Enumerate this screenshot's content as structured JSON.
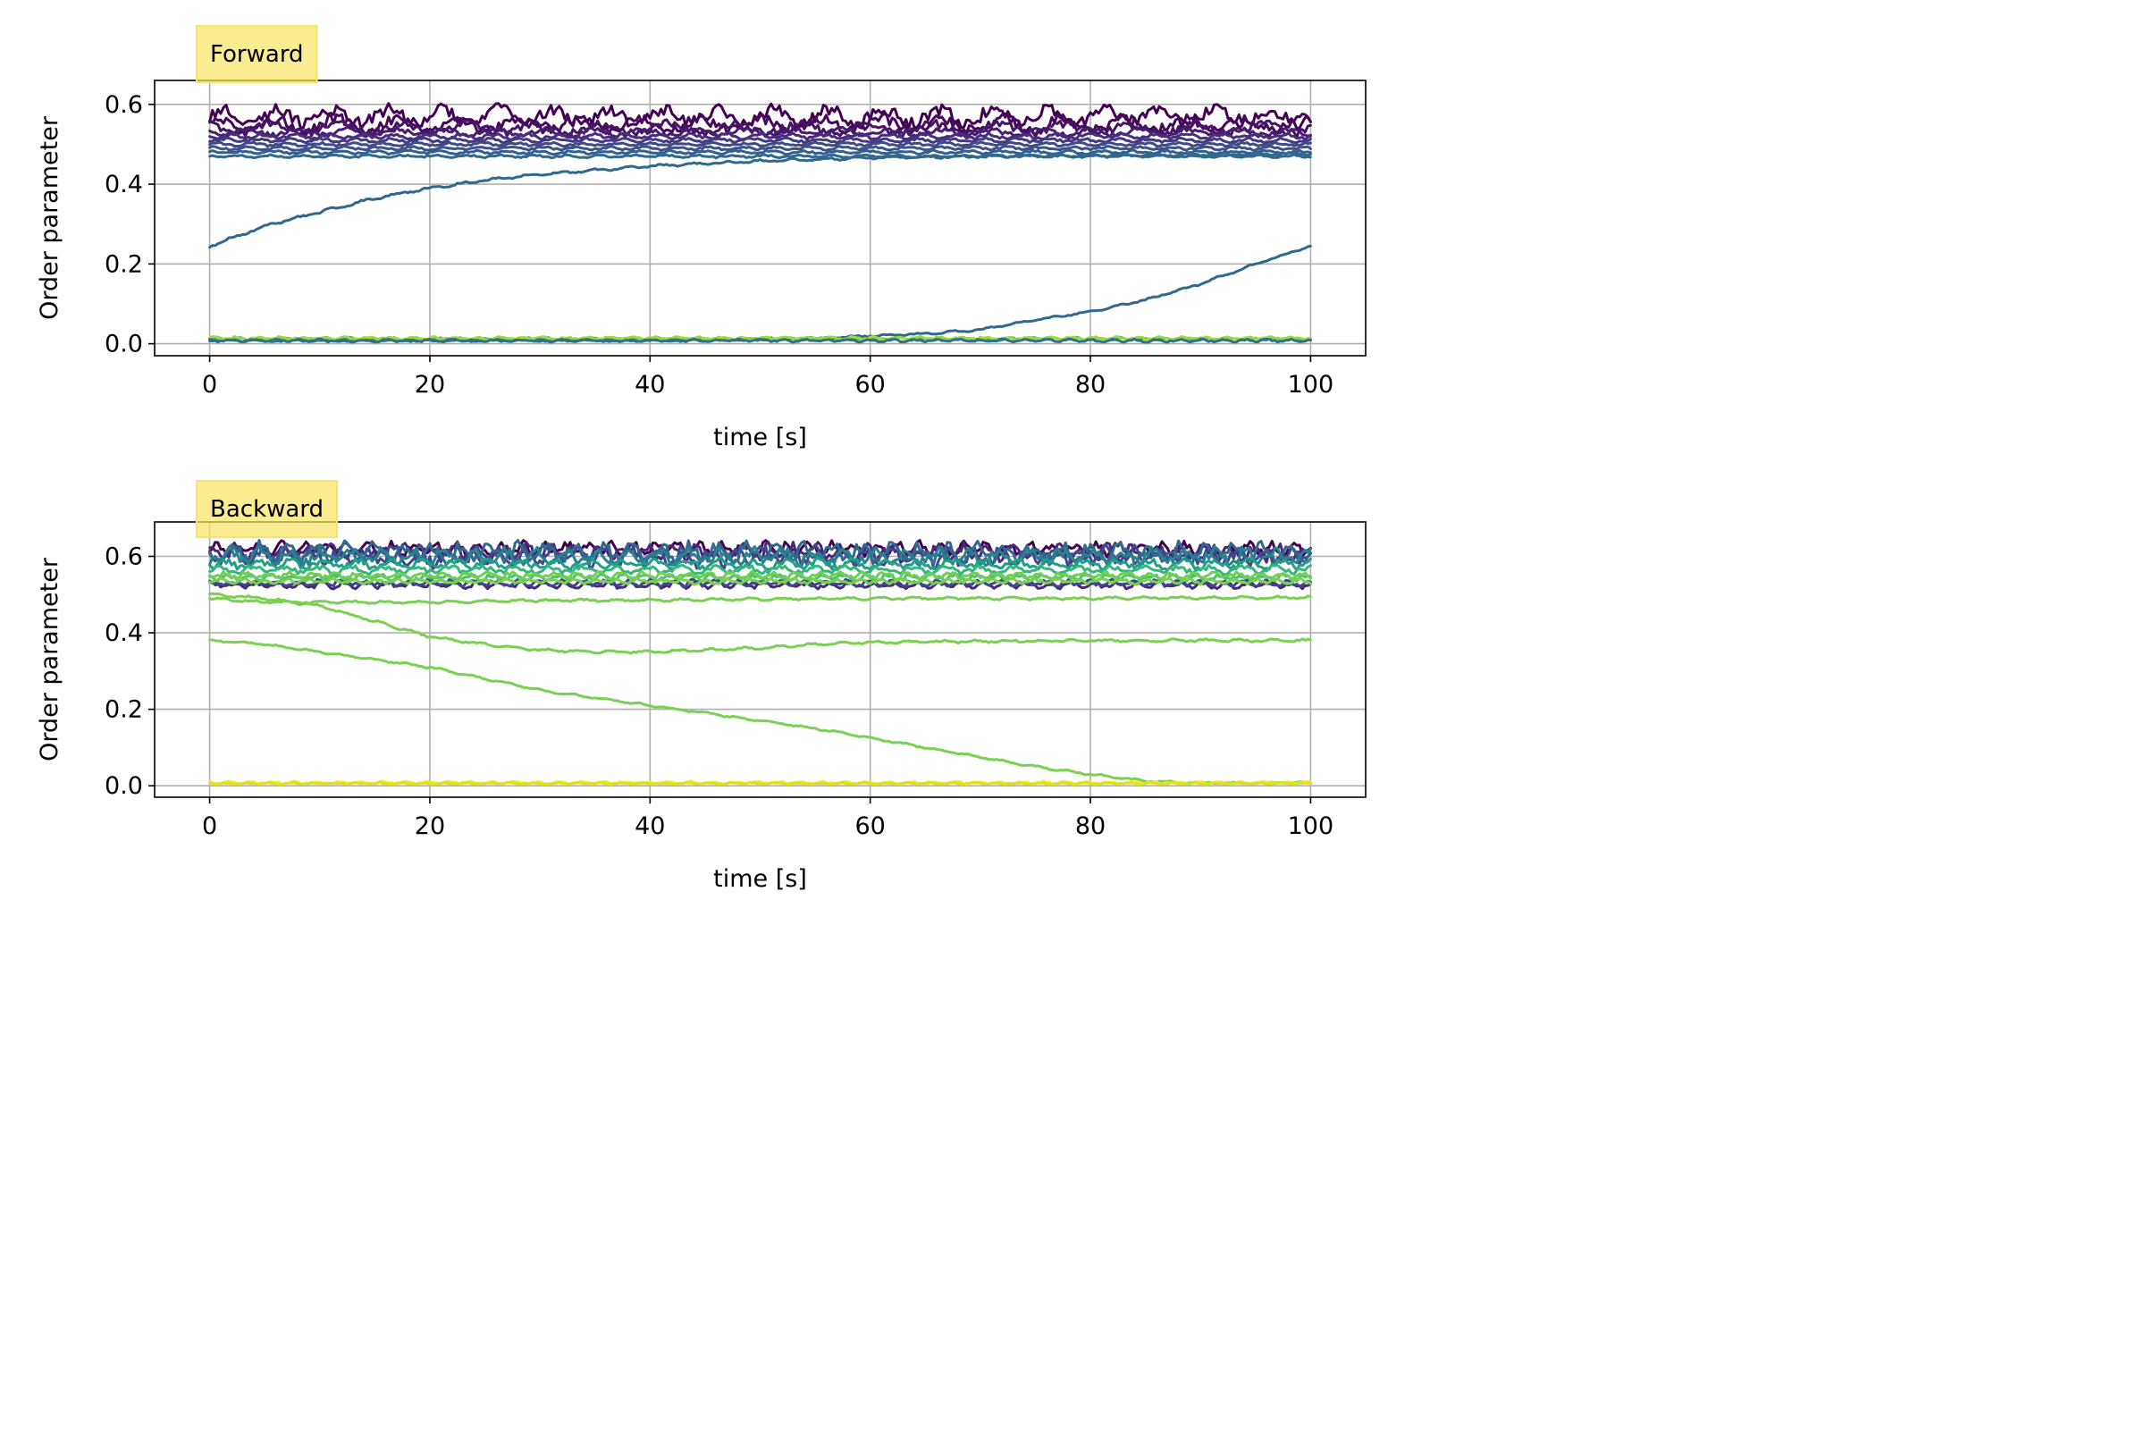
{
  "chart_data": [
    {
      "type": "line",
      "title": "Forward",
      "xlabel": "time [s]",
      "ylabel": "Order parameter",
      "xlim": [
        -5,
        105
      ],
      "ylim": [
        -0.03,
        0.66
      ],
      "xticks": [
        0,
        20,
        40,
        60,
        80,
        100
      ],
      "xtick_labels": [
        "0",
        "20",
        "40",
        "60",
        "80",
        "100"
      ],
      "yticks": [
        0.0,
        0.2,
        0.4,
        0.6
      ],
      "ytick_labels": [
        "0.0",
        "0.2",
        "0.4",
        "0.6"
      ],
      "grid": true,
      "title_box_color": "#f7e463",
      "series": [
        {
          "color": "#440154",
          "x": [
            0,
            100
          ],
          "y": [
            0.57,
            0.57
          ],
          "osc": 0.03,
          "period": 5
        },
        {
          "color": "#46085c",
          "x": [
            0,
            100
          ],
          "y": [
            0.55,
            0.55
          ],
          "osc": 0.025,
          "period": 5.5
        },
        {
          "color": "#471365",
          "x": [
            0,
            100
          ],
          "y": [
            0.54,
            0.54
          ],
          "osc": 0.02,
          "period": 6
        },
        {
          "color": "#481c6e",
          "x": [
            0,
            100
          ],
          "y": [
            0.53,
            0.53
          ],
          "osc": 0.012,
          "period": 4.5
        },
        {
          "color": "#472d7b",
          "x": [
            0,
            100
          ],
          "y": [
            0.52,
            0.52
          ],
          "osc": 0.008,
          "period": 3
        },
        {
          "color": "#443983",
          "x": [
            0,
            100
          ],
          "y": [
            0.51,
            0.51
          ],
          "osc": 0.006,
          "period": 3
        },
        {
          "color": "#3e4a89",
          "x": [
            0,
            100
          ],
          "y": [
            0.5,
            0.5
          ],
          "osc": 0.005,
          "period": 3
        },
        {
          "color": "#3b528b",
          "x": [
            0,
            100
          ],
          "y": [
            0.49,
            0.49
          ],
          "osc": 0.005,
          "period": 3
        },
        {
          "color": "#355f8d",
          "x": [
            0,
            100
          ],
          "y": [
            0.48,
            0.48
          ],
          "osc": 0.005,
          "period": 3
        },
        {
          "color": "#31688e",
          "x": [
            0,
            100
          ],
          "y": [
            0.47,
            0.47
          ],
          "osc": 0.004,
          "period": 3
        },
        {
          "color": "#31688e",
          "x": [
            0,
            5,
            10,
            15,
            20,
            25,
            30,
            35,
            40,
            45,
            50,
            55,
            60,
            65,
            70,
            75,
            80,
            85,
            90,
            95,
            100
          ],
          "y": [
            0.245,
            0.295,
            0.33,
            0.365,
            0.39,
            0.41,
            0.425,
            0.435,
            0.445,
            0.452,
            0.458,
            0.462,
            0.466,
            0.468,
            0.47,
            0.471,
            0.472,
            0.473,
            0.474,
            0.475,
            0.476
          ],
          "osc": 0.004,
          "period": 3
        },
        {
          "color": "#31688e",
          "x": [
            0,
            10,
            20,
            30,
            40,
            50,
            55,
            60,
            65,
            70,
            75,
            80,
            85,
            90,
            95,
            100
          ],
          "y": [
            0.008,
            0.008,
            0.008,
            0.008,
            0.008,
            0.01,
            0.012,
            0.02,
            0.025,
            0.035,
            0.06,
            0.08,
            0.11,
            0.15,
            0.2,
            0.245
          ],
          "osc": 0.003,
          "period": 3
        },
        {
          "color": "#20a386",
          "x": [
            0,
            100
          ],
          "y": [
            0.012,
            0.012
          ],
          "osc": 0.004,
          "period": 2
        },
        {
          "color": "#a0da39",
          "x": [
            0,
            100
          ],
          "y": [
            0.014,
            0.014
          ],
          "osc": 0.004,
          "period": 2
        },
        {
          "color": "#2c728e",
          "x": [
            0,
            100
          ],
          "y": [
            0.008,
            0.008
          ],
          "osc": 0.004,
          "period": 2
        }
      ]
    },
    {
      "type": "line",
      "title": "Backward",
      "xlabel": "time [s]",
      "ylabel": "Order parameter",
      "xlim": [
        -5,
        105
      ],
      "ylim": [
        -0.03,
        0.69
      ],
      "xticks": [
        0,
        20,
        40,
        60,
        80,
        100
      ],
      "xtick_labels": [
        "0",
        "20",
        "40",
        "60",
        "80",
        "100"
      ],
      "yticks": [
        0.0,
        0.2,
        0.4,
        0.6
      ],
      "ytick_labels": [
        "0.0",
        "0.2",
        "0.4",
        "0.6"
      ],
      "grid": true,
      "title_box_color": "#f7e463",
      "series": [
        {
          "color": "#440154",
          "x": [
            0,
            100
          ],
          "y": [
            0.62,
            0.62
          ],
          "osc": 0.02,
          "period": 2
        },
        {
          "color": "#482878",
          "x": [
            0,
            100
          ],
          "y": [
            0.61,
            0.61
          ],
          "osc": 0.025,
          "period": 2.2
        },
        {
          "color": "#3e4989",
          "x": [
            0,
            100
          ],
          "y": [
            0.6,
            0.6
          ],
          "osc": 0.03,
          "period": 2.4
        },
        {
          "color": "#31688e",
          "x": [
            0,
            100
          ],
          "y": [
            0.61,
            0.61
          ],
          "osc": 0.03,
          "period": 2.6
        },
        {
          "color": "#26828e",
          "x": [
            0,
            100
          ],
          "y": [
            0.6,
            0.6
          ],
          "osc": 0.025,
          "period": 2.8
        },
        {
          "color": "#1f9e89",
          "x": [
            0,
            100
          ],
          "y": [
            0.58,
            0.58
          ],
          "osc": 0.015,
          "period": 3
        },
        {
          "color": "#35b779",
          "x": [
            0,
            100
          ],
          "y": [
            0.565,
            0.565
          ],
          "osc": 0.012,
          "period": 3
        },
        {
          "color": "#482878",
          "x": [
            0,
            100
          ],
          "y": [
            0.525,
            0.525
          ],
          "osc": 0.01,
          "period": 2
        },
        {
          "color": "#3e4989",
          "x": [
            0,
            100
          ],
          "y": [
            0.53,
            0.53
          ],
          "osc": 0.01,
          "period": 2
        },
        {
          "color": "#4ac16d",
          "x": [
            0,
            100
          ],
          "y": [
            0.545,
            0.545
          ],
          "osc": 0.01,
          "period": 2
        },
        {
          "color": "#6ece58",
          "x": [
            0,
            100
          ],
          "y": [
            0.55,
            0.55
          ],
          "osc": 0.01,
          "period": 2
        },
        {
          "color": "#7ad151",
          "x": [
            0,
            100
          ],
          "y": [
            0.535,
            0.535
          ],
          "osc": 0.008,
          "period": 2
        },
        {
          "color": "#7ad151",
          "x": [
            0,
            5,
            10,
            20,
            30,
            40,
            50,
            60,
            70,
            80,
            90,
            100
          ],
          "y": [
            0.49,
            0.48,
            0.48,
            0.48,
            0.485,
            0.485,
            0.488,
            0.49,
            0.49,
            0.49,
            0.492,
            0.492
          ],
          "osc": 0.004,
          "period": 3
        },
        {
          "color": "#7ad151",
          "x": [
            0,
            5,
            10,
            15,
            20,
            25,
            30,
            35,
            40,
            45,
            50,
            55,
            60,
            70,
            80,
            90,
            100
          ],
          "y": [
            0.5,
            0.49,
            0.47,
            0.43,
            0.39,
            0.37,
            0.355,
            0.35,
            0.35,
            0.355,
            0.36,
            0.37,
            0.375,
            0.378,
            0.38,
            0.38,
            0.38
          ],
          "osc": 0.004,
          "period": 3
        },
        {
          "color": "#7ad151",
          "x": [
            0,
            5,
            10,
            15,
            20,
            25,
            30,
            35,
            40,
            45,
            50,
            55,
            60,
            65,
            70,
            75,
            80,
            85,
            90,
            95,
            100
          ],
          "y": [
            0.38,
            0.37,
            0.35,
            0.33,
            0.31,
            0.28,
            0.25,
            0.23,
            0.21,
            0.19,
            0.17,
            0.15,
            0.125,
            0.1,
            0.075,
            0.05,
            0.03,
            0.012,
            0.008,
            0.008,
            0.008
          ],
          "osc": 0.003,
          "period": 3
        },
        {
          "color": "#fde725",
          "x": [
            0,
            100
          ],
          "y": [
            0.008,
            0.008
          ],
          "osc": 0.004,
          "period": 2
        },
        {
          "color": "#dde318",
          "x": [
            0,
            100
          ],
          "y": [
            0.006,
            0.006
          ],
          "osc": 0.003,
          "period": 2
        }
      ]
    }
  ]
}
